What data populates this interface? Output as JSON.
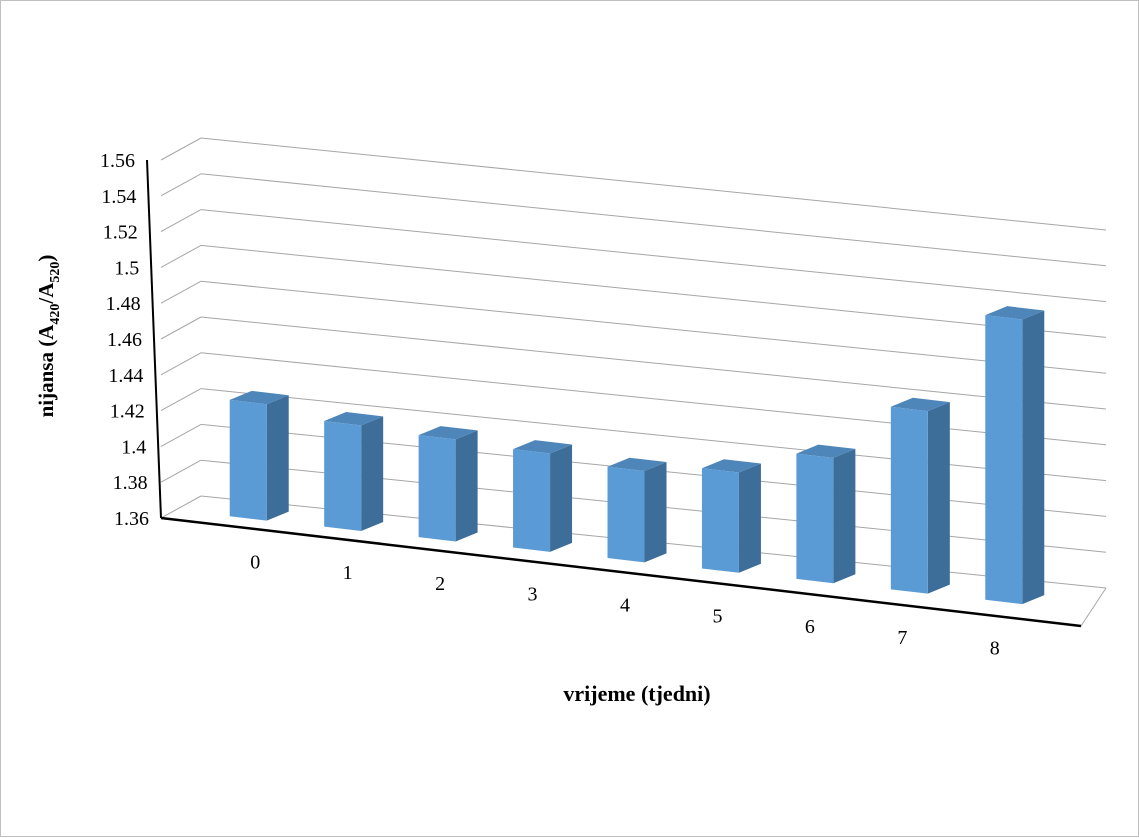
{
  "chart_data": {
    "type": "bar",
    "categories": [
      "0",
      "1",
      "2",
      "3",
      "4",
      "5",
      "6",
      "7",
      "8"
    ],
    "values": [
      1.425,
      1.419,
      1.417,
      1.415,
      1.411,
      1.416,
      1.43,
      1.462,
      1.519
    ],
    "xlabel": "vrijeme (tjedni)",
    "ylabel": {
      "prefix": "nijansa (A",
      "sub1": "420",
      "mid": "/A",
      "sub2": "520",
      "suffix": ")"
    },
    "ylim": [
      1.36,
      1.56
    ],
    "yticks": [
      "1.36",
      "1.38",
      "1.4",
      "1.42",
      "1.44",
      "1.46",
      "1.48",
      "1.5",
      "1.52",
      "1.54",
      "1.56"
    ],
    "grid": true,
    "legend": "none",
    "colors": {
      "bar_front": "#5b9bd5",
      "bar_side": "#3d6e99",
      "bar_top": "#4f86ba",
      "grid": "#a6a6a6"
    }
  }
}
